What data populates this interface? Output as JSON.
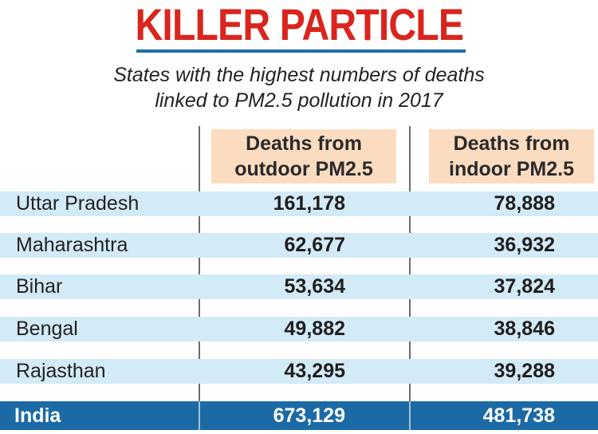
{
  "title": "KILLER PARTICLE",
  "subtitle_line1": "States with the highest numbers of deaths",
  "subtitle_line2": "linked to PM2.5 pollution in 2017",
  "colors": {
    "title": "#d9251d",
    "accent": "#1b6aa5",
    "header_bg": "#fbdcc0",
    "row_bg": "#d3eaf7"
  },
  "chart_data": {
    "type": "table",
    "columns": [
      {
        "line1": "Deaths from",
        "line2": "outdoor PM2.5"
      },
      {
        "line1": "Deaths from",
        "line2": "indoor PM2.5"
      }
    ],
    "rows": [
      {
        "state": "Uttar Pradesh",
        "outdoor": "161,178",
        "indoor": "78,888"
      },
      {
        "state": "Maharashtra",
        "outdoor": "62,677",
        "indoor": "36,932"
      },
      {
        "state": "Bihar",
        "outdoor": "53,634",
        "indoor": "37,824"
      },
      {
        "state": "Bengal",
        "outdoor": "49,882",
        "indoor": "38,846"
      },
      {
        "state": "Rajasthan",
        "outdoor": "43,295",
        "indoor": "39,288"
      }
    ],
    "total": {
      "state": "India",
      "outdoor": "673,129",
      "indoor": "481,738"
    }
  }
}
